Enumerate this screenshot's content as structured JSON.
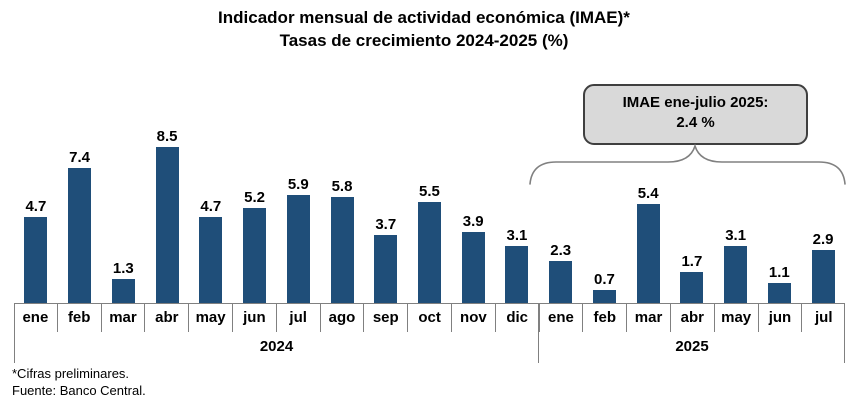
{
  "title": {
    "line1": "Indicador mensual de actividad económica (IMAE)*",
    "line2": "Tasas de crecimiento 2024-2025 (%)"
  },
  "callout": {
    "line1": "IMAE ene-julio 2025:",
    "line2": "2.4 %"
  },
  "footnotes": [
    "*Cifras preliminares.",
    "Fuente: Banco Central."
  ],
  "chart_data": {
    "type": "bar",
    "title": "Indicador mensual de actividad económica (IMAE)*",
    "subtitle": "Tasas de crecimiento 2024-2025 (%)",
    "categories": [
      "ene",
      "feb",
      "mar",
      "abr",
      "may",
      "jun",
      "jul",
      "ago",
      "sep",
      "oct",
      "nov",
      "dic",
      "ene",
      "feb",
      "mar",
      "abr",
      "may",
      "jun",
      "jul"
    ],
    "values": [
      4.7,
      7.4,
      1.3,
      8.5,
      4.7,
      5.2,
      5.9,
      5.8,
      3.7,
      5.5,
      3.9,
      3.1,
      2.3,
      0.7,
      5.4,
      1.7,
      3.1,
      1.1,
      2.9
    ],
    "year_groups": [
      {
        "label": "2024",
        "span": 12
      },
      {
        "label": "2025",
        "span": 7
      }
    ],
    "data_labels": true,
    "grid": false,
    "legend": "none",
    "ylim": [
      0,
      9
    ],
    "bar_color": "#1F4E79",
    "axis_color": "#808080",
    "annotation": "IMAE ene-julio 2025: 2.4 %",
    "annotation_applies_to": "2025 months (ene-jul)"
  }
}
